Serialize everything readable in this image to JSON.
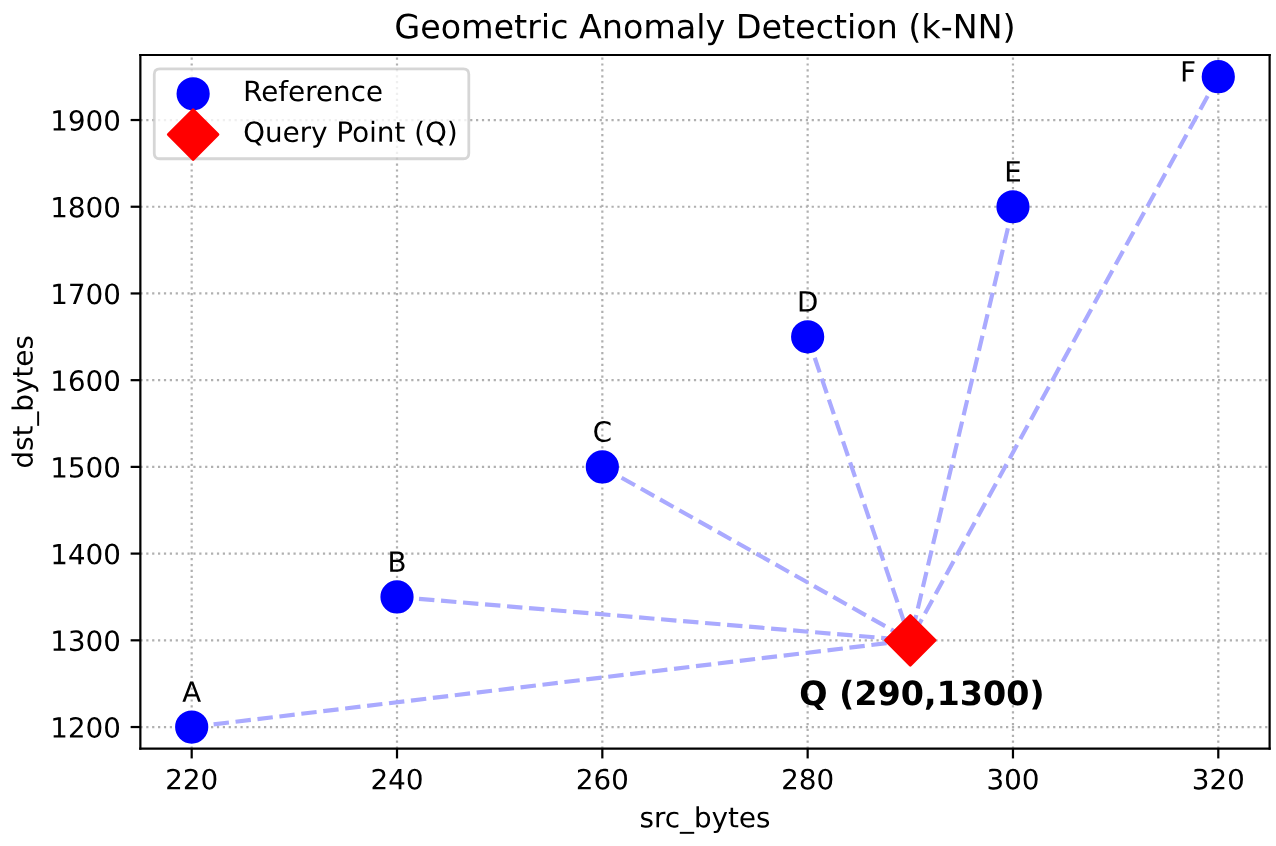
{
  "chart_data": {
    "type": "scatter",
    "title": "Geometric Anomaly Detection (k-NN)",
    "xlabel": "src_bytes",
    "ylabel": "dst_bytes",
    "xlim": [
      215,
      325
    ],
    "ylim": [
      1175,
      1975
    ],
    "xticks": [
      220,
      240,
      260,
      280,
      300,
      320
    ],
    "yticks": [
      1200,
      1300,
      1400,
      1500,
      1600,
      1700,
      1800,
      1900
    ],
    "grid": true,
    "legend": "top left",
    "series": [
      {
        "type": "line",
        "color": "#aaaaff",
        "line_style": "dashed",
        "x": [
          220,
          290
        ],
        "values": [
          1200,
          1300
        ]
      },
      {
        "type": "line",
        "color": "#aaaaff",
        "line_style": "dashed",
        "x": [
          240,
          290
        ],
        "values": [
          1350,
          1300
        ]
      },
      {
        "type": "line",
        "color": "#aaaaff",
        "line_style": "dashed",
        "x": [
          260,
          290
        ],
        "values": [
          1500,
          1300
        ]
      },
      {
        "type": "line",
        "color": "#aaaaff",
        "line_style": "dashed",
        "x": [
          280,
          290
        ],
        "values": [
          1650,
          1300
        ]
      },
      {
        "type": "line",
        "color": "#aaaaff",
        "line_style": "dashed",
        "x": [
          300,
          290
        ],
        "values": [
          1800,
          1300
        ]
      },
      {
        "type": "line",
        "color": "#aaaaff",
        "line_style": "dashed",
        "x": [
          320,
          290
        ],
        "values": [
          1950,
          1300
        ]
      },
      {
        "name": "Reference",
        "color": "#0000ff",
        "marker": "circle",
        "x": [
          220,
          240,
          260,
          280,
          300,
          320
        ],
        "values": [
          1200,
          1350,
          1500,
          1650,
          1800,
          1950
        ]
      },
      {
        "name": "Query Point (Q)",
        "color": "#ff0000",
        "marker": "diamond",
        "x": [
          290
        ],
        "values": [
          1300
        ]
      }
    ],
    "annotations": [
      {
        "text": "A",
        "x": 220,
        "y": 1200
      },
      {
        "text": "B",
        "x": 240,
        "y": 1350
      },
      {
        "text": "C",
        "x": 260,
        "y": 1500
      },
      {
        "text": "D",
        "x": 280,
        "y": 1650
      },
      {
        "text": "E",
        "x": 300,
        "y": 1800
      },
      {
        "text": "F",
        "x": 320,
        "y": 1950
      },
      {
        "text": "Q (290,1300)",
        "x": 290,
        "y": 1300
      }
    ]
  }
}
